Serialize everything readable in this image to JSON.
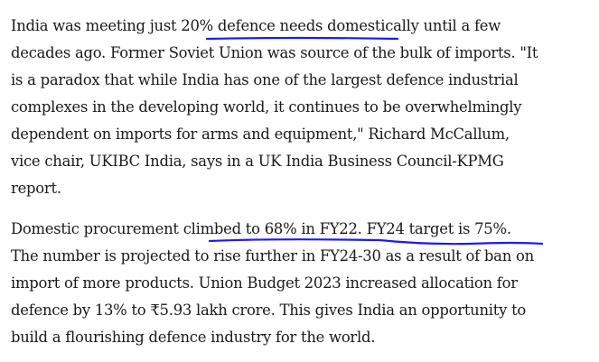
{
  "article": {
    "paragraphs": [
      {
        "lines": [
          "India was meeting just 20% defence needs domestically until a few",
          "decades ago. Former Soviet Union was source of the bulk of imports. \"It",
          "is a paradox that while India has one of the largest defence industrial",
          "complexes in the developing world, it continues to be overwhelmingly",
          "dependent on imports for arms and equipment,\" Richard McCallum,",
          "vice chair, UKIBC India, says in a UK India Business Council-KPMG",
          "report."
        ]
      },
      {
        "lines": [
          "Domestic procurement climbed to 68% in FY22. FY24 target is 75%.",
          "The number is projected to rise further in FY24-30 as a result of ban on",
          "import of more products. Union Budget 2023 increased allocation for",
          "defence by 13% to ₹5.93 lakh crore. This gives India an opportunity to",
          "build a flourishing defence industry for the world."
        ]
      }
    ]
  },
  "annotations": {
    "underline_color": "#1a1aff",
    "underlined_phrases": [
      "20% defence needs domestically until",
      "climbed to 68% in FY22. FY24 target is 75%"
    ]
  }
}
